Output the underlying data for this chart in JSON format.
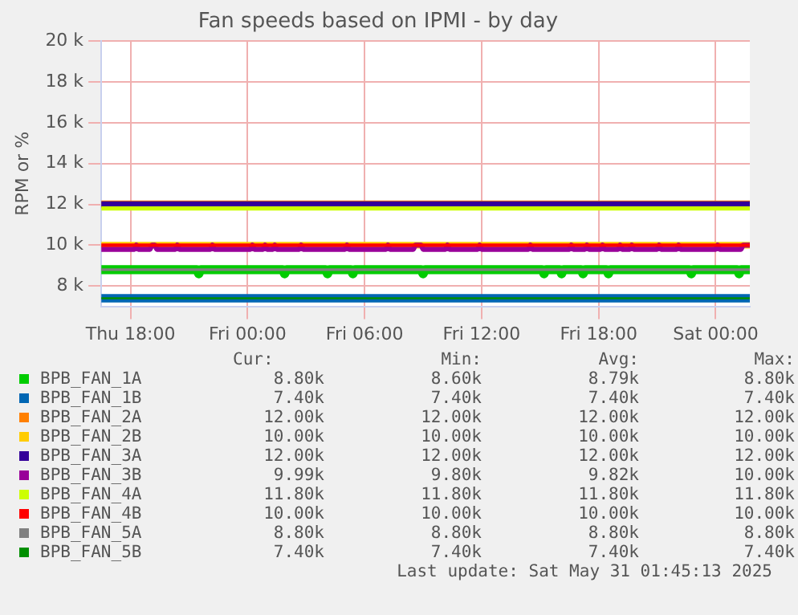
{
  "chart_data": {
    "type": "line",
    "title": "Fan speeds based on IPMI - by day",
    "ylabel": "RPM or %",
    "xlim": [
      "2025-05-29T16:30",
      "2025-05-31T01:45"
    ],
    "xticks": [
      {
        "value": "2025-05-29T18:00",
        "label": "Thu 18:00"
      },
      {
        "value": "2025-05-30T00:00",
        "label": "Fri 00:00"
      },
      {
        "value": "2025-05-30T06:00",
        "label": "Fri 06:00"
      },
      {
        "value": "2025-05-30T12:00",
        "label": "Fri 12:00"
      },
      {
        "value": "2025-05-30T18:00",
        "label": "Fri 18:00"
      },
      {
        "value": "2025-05-31T00:00",
        "label": "Sat 00:00"
      }
    ],
    "ylim": [
      7000,
      20000
    ],
    "yticks": [
      {
        "value": 8000,
        "label": "8 k"
      },
      {
        "value": 10000,
        "label": "10 k"
      },
      {
        "value": 12000,
        "label": "12 k"
      },
      {
        "value": 14000,
        "label": "14 k"
      },
      {
        "value": 16000,
        "label": "16 k"
      },
      {
        "value": 18000,
        "label": "18 k"
      },
      {
        "value": 20000,
        "label": "20 k"
      }
    ],
    "grid": true,
    "legend": "bottom",
    "marker": "none",
    "line_style": "solid",
    "series": [
      {
        "name": "BPB_FAN_1A",
        "color": "#00cc00",
        "x": [
          "2025-05-29T16:30",
          "2025-05-29T21:24",
          "2025-05-29T21:30",
          "2025-05-29T21:36",
          "2025-05-30T01:48",
          "2025-05-30T01:54",
          "2025-05-30T02:00",
          "2025-05-30T04:00",
          "2025-05-30T04:06",
          "2025-05-30T04:12",
          "2025-05-30T05:18",
          "2025-05-30T05:24",
          "2025-05-30T05:30",
          "2025-05-30T08:54",
          "2025-05-30T09:00",
          "2025-05-30T09:06",
          "2025-05-30T15:06",
          "2025-05-30T15:12",
          "2025-05-30T15:18",
          "2025-05-30T16:00",
          "2025-05-30T16:06",
          "2025-05-30T16:12",
          "2025-05-30T17:06",
          "2025-05-30T17:12",
          "2025-05-30T17:18",
          "2025-05-30T18:24",
          "2025-05-30T18:30",
          "2025-05-30T18:36",
          "2025-05-30T22:39",
          "2025-05-30T22:45",
          "2025-05-30T22:51",
          "2025-05-31T01:06",
          "2025-05-31T01:12",
          "2025-05-31T01:18",
          "2025-05-31T01:45"
        ],
        "values": [
          8800,
          8800,
          8600,
          8800,
          8800,
          8600,
          8800,
          8800,
          8600,
          8800,
          8800,
          8600,
          8800,
          8800,
          8600,
          8800,
          8800,
          8600,
          8800,
          8800,
          8600,
          8800,
          8800,
          8600,
          8800,
          8800,
          8600,
          8800,
          8800,
          8600,
          8800,
          8800,
          8600,
          8800,
          8800
        ]
      },
      {
        "name": "BPB_FAN_1B",
        "color": "#0066b3",
        "x": [
          "2025-05-29T16:30",
          "2025-05-31T01:45"
        ],
        "values": [
          7400,
          7400
        ]
      },
      {
        "name": "BPB_FAN_2A",
        "color": "#ff8000",
        "x": [
          "2025-05-29T16:30",
          "2025-05-31T01:45"
        ],
        "values": [
          12000,
          12000
        ]
      },
      {
        "name": "BPB_FAN_2B",
        "color": "#ffcc00",
        "x": [
          "2025-05-29T16:30",
          "2025-05-31T01:45"
        ],
        "values": [
          10000,
          10000
        ]
      },
      {
        "name": "BPB_FAN_3A",
        "color": "#330099",
        "x": [
          "2025-05-29T16:30",
          "2025-05-31T01:45"
        ],
        "values": [
          12000,
          12000
        ]
      },
      {
        "name": "BPB_FAN_3B",
        "color": "#990099",
        "x": [
          "2025-05-29T16:30",
          "2025-05-29T18:12",
          "2025-05-29T18:18",
          "2025-05-29T18:24",
          "2025-05-29T19:00",
          "2025-05-29T19:06",
          "2025-05-29T19:15",
          "2025-05-29T19:21",
          "2025-05-29T20:18",
          "2025-05-29T20:24",
          "2025-05-29T20:30",
          "2025-05-29T22:06",
          "2025-05-29T22:12",
          "2025-05-29T22:18",
          "2025-05-30T00:09",
          "2025-05-30T00:15",
          "2025-05-30T00:21",
          "2025-05-30T00:48",
          "2025-05-30T00:54",
          "2025-05-30T01:00",
          "2025-05-30T01:18",
          "2025-05-30T01:24",
          "2025-05-30T01:30",
          "2025-05-30T02:39",
          "2025-05-30T02:45",
          "2025-05-30T02:51",
          "2025-05-30T05:00",
          "2025-05-30T05:06",
          "2025-05-30T05:12",
          "2025-05-30T07:06",
          "2025-05-30T07:12",
          "2025-05-30T07:18",
          "2025-05-30T08:30",
          "2025-05-30T08:36",
          "2025-05-30T08:54",
          "2025-05-30T09:00",
          "2025-05-30T10:09",
          "2025-05-30T10:15",
          "2025-05-30T10:21",
          "2025-05-30T11:48",
          "2025-05-30T11:54",
          "2025-05-30T12:00",
          "2025-05-30T14:24",
          "2025-05-30T14:30",
          "2025-05-30T14:36",
          "2025-05-30T16:30",
          "2025-05-30T16:36",
          "2025-05-30T16:42",
          "2025-05-30T17:18",
          "2025-05-30T17:24",
          "2025-05-30T17:30",
          "2025-05-30T18:06",
          "2025-05-30T18:12",
          "2025-05-30T18:18",
          "2025-05-30T19:00",
          "2025-05-30T19:06",
          "2025-05-30T19:12",
          "2025-05-30T19:36",
          "2025-05-30T19:42",
          "2025-05-30T19:48",
          "2025-05-30T21:00",
          "2025-05-30T21:06",
          "2025-05-30T21:12",
          "2025-05-30T22:00",
          "2025-05-30T22:06",
          "2025-05-30T22:12",
          "2025-05-31T00:00",
          "2025-05-31T00:06",
          "2025-05-31T00:12",
          "2025-05-31T01:18",
          "2025-05-31T01:24",
          "2025-05-31T01:45"
        ],
        "values": [
          9800,
          9800,
          10000,
          9800,
          9800,
          10000,
          10000,
          9800,
          9800,
          10000,
          9800,
          9800,
          10000,
          9800,
          9800,
          10000,
          9800,
          9800,
          10000,
          9800,
          9800,
          10000,
          9800,
          9800,
          10000,
          9800,
          9800,
          10000,
          9800,
          9800,
          10000,
          9800,
          9800,
          10000,
          10000,
          9800,
          9800,
          10000,
          9800,
          9800,
          10000,
          9800,
          9800,
          10000,
          9800,
          9800,
          10000,
          9800,
          9800,
          10000,
          9800,
          9800,
          10000,
          9800,
          9800,
          10000,
          9800,
          9800,
          10000,
          9800,
          9800,
          10000,
          9800,
          9800,
          10000,
          9800,
          9800,
          10000,
          9800,
          9800,
          10000,
          10000
        ]
      },
      {
        "name": "BPB_FAN_4A",
        "color": "#ccff00",
        "x": [
          "2025-05-29T16:30",
          "2025-05-31T01:45"
        ],
        "values": [
          11800,
          11800
        ]
      },
      {
        "name": "BPB_FAN_4B",
        "color": "#ff0000",
        "x": [
          "2025-05-29T16:30",
          "2025-05-31T01:45"
        ],
        "values": [
          10000,
          10000
        ]
      },
      {
        "name": "BPB_FAN_5A",
        "color": "#808080",
        "x": [
          "2025-05-29T16:30",
          "2025-05-31T01:45"
        ],
        "values": [
          8800,
          8800
        ]
      },
      {
        "name": "BPB_FAN_5B",
        "color": "#008f00",
        "x": [
          "2025-05-29T16:30",
          "2025-05-31T01:45"
        ],
        "values": [
          7400,
          7400
        ]
      }
    ],
    "annotations": [
      "Cur:",
      "Min:",
      "Avg:",
      "Max:",
      "8.80k",
      "8.60k",
      "8.79k",
      "8.80k",
      "7.40k",
      "7.40k",
      "7.40k",
      "7.40k",
      "12.00k",
      "12.00k",
      "12.00k",
      "12.00k",
      "10.00k",
      "10.00k",
      "10.00k",
      "10.00k",
      "12.00k",
      "12.00k",
      "12.00k",
      "12.00k",
      "9.99k",
      "9.80k",
      "9.82k",
      "10.00k",
      "11.80k",
      "11.80k",
      "11.80k",
      "11.80k",
      "10.00k",
      "10.00k",
      "10.00k",
      "10.00k",
      "8.80k",
      "8.80k",
      "8.80k",
      "8.80k",
      "7.40k",
      "7.40k",
      "7.40k",
      "7.40k",
      "Last update: Sat May 31 01:45:13 2025"
    ]
  }
}
